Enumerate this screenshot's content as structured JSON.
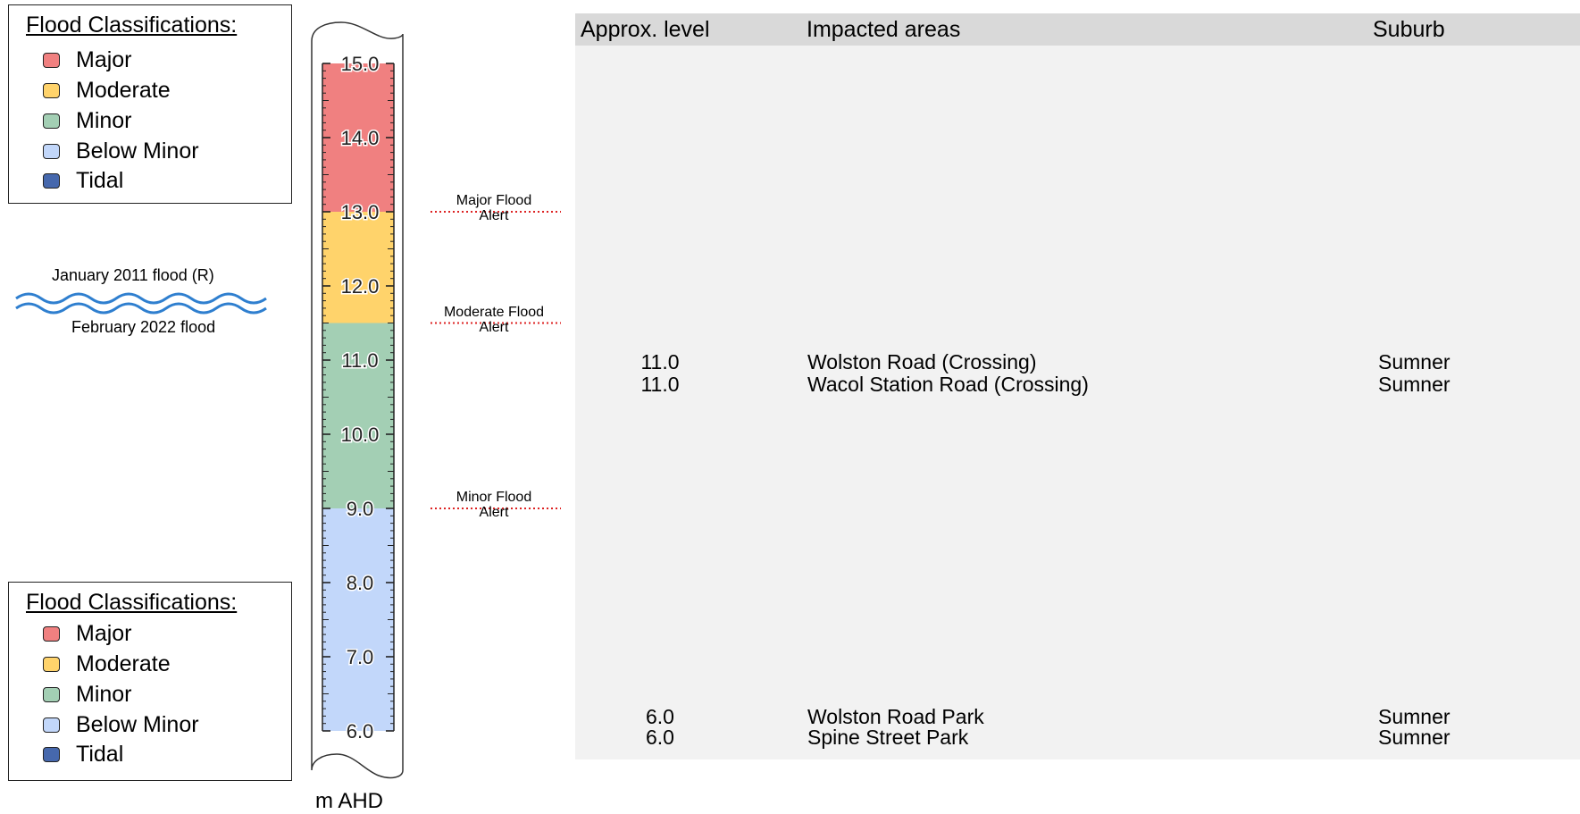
{
  "legend": {
    "title": "Flood Classifications:",
    "items": [
      {
        "label": "Major",
        "color": "#f08080"
      },
      {
        "label": "Moderate",
        "color": "#ffd36b"
      },
      {
        "label": "Minor",
        "color": "#a3cfb4"
      },
      {
        "label": "Below Minor",
        "color": "#c2d7fa"
      },
      {
        "label": "Tidal",
        "color": "#4668ad"
      }
    ]
  },
  "gauge": {
    "unit": "m AHD",
    "min": 6.0,
    "max": 15.0,
    "ticks": [
      "6.0",
      "7.0",
      "8.0",
      "9.0",
      "10.0",
      "11.0",
      "12.0",
      "13.0",
      "14.0",
      "15.0"
    ],
    "bands": [
      {
        "class": "Below Minor",
        "from": 6.0,
        "to": 9.0,
        "color": "#c2d7fa"
      },
      {
        "class": "Minor",
        "from": 9.0,
        "to": 11.5,
        "color": "#a3cfb4"
      },
      {
        "class": "Moderate",
        "from": 11.5,
        "to": 13.0,
        "color": "#ffd36b"
      },
      {
        "class": "Major",
        "from": 13.0,
        "to": 15.0,
        "color": "#f08080"
      }
    ]
  },
  "historic_floods": [
    {
      "label": "January 2011 flood (R)"
    },
    {
      "label": "February 2022 flood"
    }
  ],
  "alerts": [
    {
      "line1": "Major Flood",
      "line2": "Alert",
      "level": 13.0
    },
    {
      "line1": "Moderate Flood",
      "line2": "Alert",
      "level": 11.5
    },
    {
      "line1": "Minor Flood",
      "line2": "Alert",
      "level": 9.0
    }
  ],
  "table": {
    "headers": {
      "level": "Approx. level",
      "areas": "Impacted areas",
      "suburb": "Suburb"
    },
    "rows": [
      {
        "level": "11.0",
        "area": "Wolston Road (Crossing)",
        "suburb": "Sumner"
      },
      {
        "level": "11.0",
        "area": "Wacol Station Road (Crossing)",
        "suburb": "Sumner"
      },
      {
        "level": "6.0",
        "area": "Wolston Road Park",
        "suburb": "Sumner"
      },
      {
        "level": "6.0",
        "area": "Spine Street Park",
        "suburb": "Sumner"
      }
    ]
  }
}
